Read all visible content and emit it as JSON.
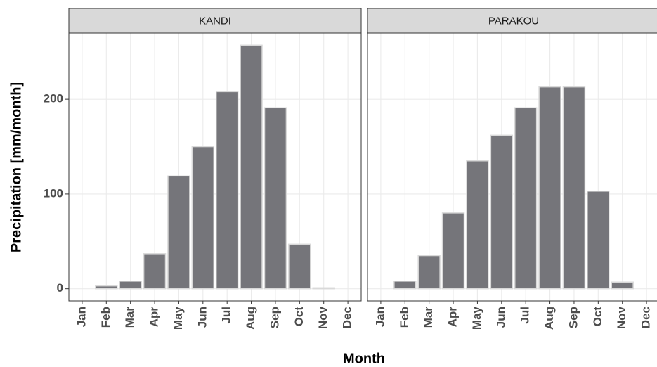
{
  "chart_data": [
    {
      "type": "bar",
      "title": "KANDI",
      "ylabel": "Precipitation [mm/month]",
      "xlabel": "Month",
      "categories": [
        "Jan",
        "Feb",
        "Mar",
        "Apr",
        "May",
        "Jun",
        "Jul",
        "Aug",
        "Sep",
        "Oct",
        "Nov",
        "Dec"
      ],
      "values": [
        0,
        3,
        8,
        37,
        119,
        150,
        208,
        257,
        191,
        47,
        1,
        0
      ],
      "color": "#75757a",
      "ylim": [
        -12.85,
        269.85
      ],
      "yticks": [
        0,
        100,
        200
      ],
      "grid": true
    },
    {
      "type": "bar",
      "title": "PARAKOU",
      "categories": [
        "Jan",
        "Feb",
        "Mar",
        "Apr",
        "May",
        "Jun",
        "Jul",
        "Aug",
        "Sep",
        "Oct",
        "Nov",
        "Dec"
      ],
      "values": [
        0,
        8,
        35,
        80,
        135,
        162,
        191,
        213,
        213,
        103,
        7,
        0
      ],
      "color": "#75757a",
      "ylim": [
        -12.85,
        269.85
      ],
      "yticks": [
        0,
        100,
        200
      ],
      "grid": true
    }
  ]
}
